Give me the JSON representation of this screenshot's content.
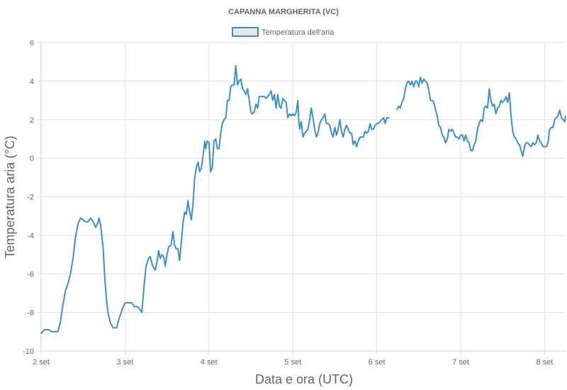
{
  "chart_data": {
    "type": "line",
    "title": "CAPANNA MARGHERITA (VC)",
    "xlabel": "Data e ora (UTC)",
    "ylabel": "Temperatura aria (°C)",
    "x_tick_labels": [
      "2 set",
      "3 set",
      "4 set",
      "5 set",
      "6 set",
      "7 set",
      "8 set"
    ],
    "y_ticks": [
      -10,
      -8,
      -6,
      -4,
      -2,
      0,
      2,
      4,
      6
    ],
    "ylim": [
      -10,
      6
    ],
    "xlim_days": [
      2,
      8.25
    ],
    "grid": true,
    "legend_position": "top",
    "series": [
      {
        "name": "Temperatura dell'aria",
        "color": "#3b8fcb",
        "fill": "#e6e6e6",
        "points": [
          [
            2.0,
            -9.1
          ],
          [
            2.04,
            -8.9
          ],
          [
            2.09,
            -8.9
          ],
          [
            2.13,
            -9.0
          ],
          [
            2.2,
            -9.0
          ],
          [
            2.23,
            -8.5
          ],
          [
            2.26,
            -7.6
          ],
          [
            2.29,
            -6.9
          ],
          [
            2.32,
            -6.5
          ],
          [
            2.35,
            -6.0
          ],
          [
            2.38,
            -5.2
          ],
          [
            2.41,
            -4.1
          ],
          [
            2.44,
            -3.4
          ],
          [
            2.47,
            -3.1
          ],
          [
            2.5,
            -3.2
          ],
          [
            2.53,
            -3.3
          ],
          [
            2.56,
            -3.3
          ],
          [
            2.59,
            -3.1
          ],
          [
            2.62,
            -3.3
          ],
          [
            2.65,
            -3.6
          ],
          [
            2.68,
            -3.3
          ],
          [
            2.69,
            -3.1
          ],
          [
            2.71,
            -3.5
          ],
          [
            2.74,
            -4.7
          ],
          [
            2.76,
            -6.3
          ],
          [
            2.78,
            -7.4
          ],
          [
            2.8,
            -8.1
          ],
          [
            2.83,
            -8.6
          ],
          [
            2.86,
            -8.8
          ],
          [
            2.9,
            -8.8
          ],
          [
            2.93,
            -8.3
          ],
          [
            2.97,
            -7.8
          ],
          [
            3.0,
            -7.5
          ],
          [
            3.05,
            -7.5
          ],
          [
            3.08,
            -7.5
          ],
          [
            3.11,
            -7.7
          ],
          [
            3.15,
            -7.7
          ],
          [
            3.17,
            -7.8
          ],
          [
            3.2,
            -8.0
          ],
          [
            3.23,
            -6.5
          ],
          [
            3.25,
            -5.6
          ],
          [
            3.28,
            -5.2
          ],
          [
            3.3,
            -5.1
          ],
          [
            3.33,
            -5.6
          ],
          [
            3.36,
            -5.8
          ],
          [
            3.38,
            -5.4
          ],
          [
            3.4,
            -4.8
          ],
          [
            3.42,
            -5.2
          ],
          [
            3.44,
            -5.0
          ],
          [
            3.46,
            -5.1
          ],
          [
            3.48,
            -5.6
          ],
          [
            3.5,
            -5.0
          ],
          [
            3.52,
            -4.6
          ],
          [
            3.55,
            -4.5
          ],
          [
            3.57,
            -3.8
          ],
          [
            3.59,
            -4.5
          ],
          [
            3.61,
            -4.7
          ],
          [
            3.63,
            -4.7
          ],
          [
            3.65,
            -5.3
          ],
          [
            3.67,
            -4.4
          ],
          [
            3.69,
            -3.4
          ],
          [
            3.71,
            -2.8
          ],
          [
            3.73,
            -2.9
          ],
          [
            3.75,
            -2.2
          ],
          [
            3.77,
            -2.8
          ],
          [
            3.79,
            -3.2
          ],
          [
            3.81,
            -2.4
          ],
          [
            3.83,
            -1.0
          ],
          [
            3.85,
            -0.5
          ],
          [
            3.87,
            -0.2
          ],
          [
            3.89,
            -0.7
          ],
          [
            3.91,
            -0.5
          ],
          [
            3.93,
            0.1
          ],
          [
            3.95,
            0.9
          ],
          [
            3.96,
            0.5
          ],
          [
            3.98,
            0.9
          ],
          [
            4.0,
            0.8
          ],
          [
            4.02,
            -0.7
          ],
          [
            4.04,
            -0.5
          ],
          [
            4.06,
            0.9
          ],
          [
            4.08,
            1.0
          ],
          [
            4.1,
            0.5
          ],
          [
            4.12,
            0.5
          ],
          [
            4.14,
            1.3
          ],
          [
            4.16,
            1.8
          ],
          [
            4.18,
            2.0
          ],
          [
            4.2,
            2.1
          ],
          [
            4.22,
            3.0
          ],
          [
            4.24,
            3.0
          ],
          [
            4.26,
            3.7
          ],
          [
            4.28,
            3.8
          ],
          [
            4.3,
            3.8
          ],
          [
            4.32,
            4.8
          ],
          [
            4.34,
            3.8
          ],
          [
            4.36,
            4.0
          ],
          [
            4.38,
            4.1
          ],
          [
            4.4,
            3.6
          ],
          [
            4.42,
            3.5
          ],
          [
            4.44,
            3.3
          ],
          [
            4.46,
            3.6
          ],
          [
            4.48,
            3.0
          ],
          [
            4.5,
            2.4
          ],
          [
            4.52,
            2.3
          ],
          [
            4.54,
            2.4
          ],
          [
            4.56,
            2.8
          ],
          [
            4.58,
            2.6
          ],
          [
            4.6,
            3.2
          ],
          [
            4.62,
            3.2
          ],
          [
            4.64,
            3.2
          ],
          [
            4.66,
            3.2
          ],
          [
            4.68,
            3.1
          ],
          [
            4.7,
            3.2
          ],
          [
            4.72,
            3.3
          ],
          [
            4.74,
            3.5
          ],
          [
            4.76,
            3.0
          ],
          [
            4.78,
            3.3
          ],
          [
            4.8,
            2.6
          ],
          [
            4.82,
            3.3
          ],
          [
            4.84,
            2.7
          ],
          [
            4.86,
            2.6
          ],
          [
            4.88,
            3.1
          ],
          [
            4.9,
            3.0
          ],
          [
            4.92,
            2.9
          ],
          [
            4.94,
            2.1
          ],
          [
            4.96,
            2.3
          ],
          [
            4.98,
            2.2
          ],
          [
            5.0,
            2.3
          ],
          [
            5.02,
            2.2
          ],
          [
            5.04,
            2.4
          ],
          [
            5.06,
            3.0
          ],
          [
            5.07,
            2.0
          ],
          [
            5.08,
            1.5
          ],
          [
            5.1,
            1.9
          ],
          [
            5.12,
            1.1
          ],
          [
            5.14,
            1.3
          ],
          [
            5.16,
            1.4
          ],
          [
            5.18,
            1.5
          ],
          [
            5.2,
            2.0
          ],
          [
            5.22,
            2.6
          ],
          [
            5.24,
            2.1
          ],
          [
            5.26,
            1.5
          ],
          [
            5.28,
            1.1
          ],
          [
            5.3,
            1.3
          ],
          [
            5.32,
            1.8
          ],
          [
            5.34,
            2.0
          ],
          [
            5.36,
            2.1
          ],
          [
            5.38,
            2.3
          ],
          [
            5.4,
            1.8
          ],
          [
            5.42,
            1.8
          ],
          [
            5.44,
            1.7
          ],
          [
            5.46,
            1.3
          ],
          [
            5.48,
            1.1
          ],
          [
            5.5,
            1.6
          ],
          [
            5.52,
            1.2
          ],
          [
            5.54,
            1.5
          ],
          [
            5.56,
            2.0
          ],
          [
            5.58,
            1.4
          ],
          [
            5.6,
            1.1
          ],
          [
            5.62,
            1.5
          ],
          [
            5.64,
            1.7
          ],
          [
            5.66,
            1.5
          ],
          [
            5.68,
            1.3
          ],
          [
            5.7,
            1.3
          ],
          [
            5.72,
            0.7
          ],
          [
            5.74,
            0.9
          ],
          [
            5.76,
            0.6
          ],
          [
            5.78,
            0.9
          ],
          [
            5.8,
            1.1
          ],
          [
            5.82,
            1.1
          ],
          [
            5.84,
            1.1
          ],
          [
            5.86,
            1.4
          ],
          [
            5.88,
            1.3
          ],
          [
            5.9,
            1.4
          ],
          [
            5.92,
            1.8
          ],
          [
            5.94,
            1.5
          ],
          [
            5.96,
            1.5
          ],
          [
            5.98,
            1.7
          ],
          [
            6.0,
            1.8
          ],
          [
            6.02,
            1.8
          ],
          [
            6.04,
            1.9
          ],
          [
            6.06,
            2.0
          ],
          [
            6.08,
            2.1
          ],
          [
            6.1,
            1.8
          ],
          [
            6.12,
            2.1
          ],
          [
            6.15,
            2.1
          ],
          null,
          [
            6.24,
            2.5
          ],
          [
            6.26,
            2.7
          ],
          [
            6.28,
            2.6
          ],
          [
            6.3,
            2.9
          ],
          [
            6.32,
            3.1
          ],
          [
            6.34,
            3.6
          ],
          [
            6.36,
            3.9
          ],
          [
            6.38,
            4.0
          ],
          [
            6.4,
            3.8
          ],
          [
            6.42,
            4.0
          ],
          [
            6.44,
            3.7
          ],
          [
            6.46,
            4.0
          ],
          [
            6.48,
            4.0
          ],
          [
            6.5,
            3.7
          ],
          [
            6.52,
            4.2
          ],
          [
            6.54,
            3.9
          ],
          [
            6.56,
            4.1
          ],
          [
            6.58,
            4.0
          ],
          [
            6.6,
            3.9
          ],
          [
            6.62,
            3.5
          ],
          [
            6.64,
            3.0
          ],
          [
            6.66,
            3.0
          ],
          [
            6.68,
            2.9
          ],
          [
            6.7,
            2.5
          ],
          [
            6.72,
            2.2
          ],
          [
            6.74,
            1.7
          ],
          [
            6.76,
            1.6
          ],
          [
            6.78,
            1.2
          ],
          [
            6.8,
            1.1
          ],
          [
            6.82,
            0.8
          ],
          [
            6.84,
            1.0
          ],
          [
            6.86,
            1.5
          ],
          [
            6.88,
            1.4
          ],
          [
            6.9,
            1.5
          ],
          [
            6.92,
            1.3
          ],
          [
            6.94,
            1.1
          ],
          [
            6.96,
            1.1
          ],
          [
            6.98,
            1.0
          ],
          [
            7.0,
            1.2
          ],
          [
            7.02,
            1.2
          ],
          [
            7.04,
            0.9
          ],
          [
            7.06,
            1.2
          ],
          [
            7.08,
            0.9
          ],
          [
            7.1,
            0.8
          ],
          [
            7.12,
            0.4
          ],
          [
            7.14,
            0.4
          ],
          [
            7.16,
            0.7
          ],
          [
            7.18,
            0.9
          ],
          [
            7.2,
            1.5
          ],
          [
            7.22,
            1.8
          ],
          [
            7.24,
            2.0
          ],
          [
            7.26,
            1.9
          ],
          [
            7.28,
            2.6
          ],
          [
            7.3,
            2.7
          ],
          [
            7.32,
            2.6
          ],
          [
            7.34,
            3.6
          ],
          [
            7.36,
            3.0
          ],
          [
            7.38,
            2.7
          ],
          [
            7.4,
            2.8
          ],
          [
            7.42,
            2.3
          ],
          [
            7.44,
            2.6
          ],
          [
            7.46,
            2.7
          ],
          [
            7.48,
            3.0
          ],
          [
            7.5,
            2.9
          ],
          [
            7.52,
            3.0
          ],
          [
            7.54,
            3.2
          ],
          [
            7.56,
            2.9
          ],
          [
            7.58,
            3.4
          ],
          [
            7.6,
            2.2
          ],
          [
            7.62,
            1.4
          ],
          [
            7.64,
            1.1
          ],
          [
            7.66,
            1.0
          ],
          [
            7.68,
            0.8
          ],
          [
            7.7,
            0.7
          ],
          [
            7.72,
            0.4
          ],
          [
            7.74,
            0.1
          ],
          [
            7.76,
            0.6
          ],
          [
            7.78,
            0.8
          ],
          [
            7.8,
            0.8
          ],
          [
            7.82,
            0.7
          ],
          [
            7.84,
            0.6
          ],
          [
            7.86,
            0.8
          ],
          [
            7.88,
            0.7
          ],
          [
            7.9,
            0.8
          ],
          [
            7.92,
            1.2
          ],
          [
            7.94,
            0.9
          ],
          [
            7.96,
            0.8
          ],
          [
            7.98,
            0.6
          ],
          [
            8.0,
            0.6
          ],
          [
            8.02,
            0.6
          ],
          [
            8.04,
            0.8
          ],
          [
            8.06,
            1.5
          ],
          [
            8.08,
            1.6
          ],
          [
            8.1,
            1.6
          ],
          [
            8.12,
            2.0
          ],
          [
            8.14,
            2.1
          ],
          [
            8.16,
            2.2
          ],
          [
            8.18,
            2.5
          ],
          [
            8.2,
            2.1
          ],
          [
            8.22,
            2.0
          ],
          [
            8.24,
            1.9
          ],
          [
            8.25,
            2.2
          ]
        ]
      }
    ]
  }
}
